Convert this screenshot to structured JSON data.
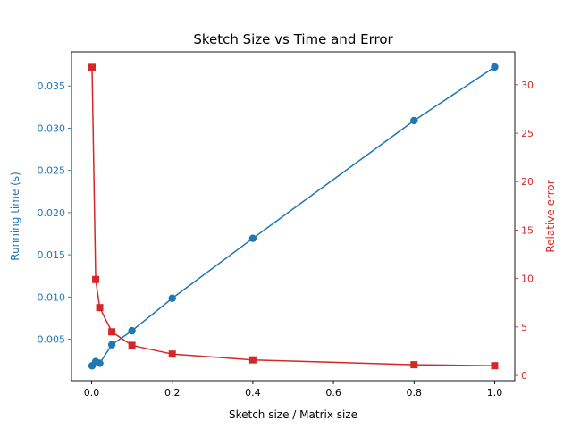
{
  "chart_data": {
    "type": "line",
    "title": "Sketch Size vs Time and Error",
    "xlabel": "Sketch size / Matrix size",
    "xlim": [
      -0.05,
      1.05
    ],
    "xticks": [
      0.0,
      0.2,
      0.4,
      0.6,
      0.8,
      1.0
    ],
    "x": [
      0.001,
      0.01,
      0.02,
      0.05,
      0.1,
      0.2,
      0.4,
      0.8,
      1.0
    ],
    "legend": "none",
    "grid": false,
    "axes": {
      "left": {
        "label": "Running time (s)",
        "color": "#1f77b4",
        "ylim": [
          8e-05,
          0.03905
        ],
        "ticks": [
          0.005,
          0.01,
          0.015,
          0.02,
          0.025,
          0.03,
          0.035
        ],
        "tick_decimals": 3
      },
      "right": {
        "label": "Relative error",
        "color": "#d62728",
        "ylim": [
          -0.55,
          33.4
        ],
        "ticks": [
          0,
          5,
          10,
          15,
          20,
          25,
          30
        ],
        "tick_decimals": 0
      }
    },
    "series": [
      {
        "axis": "left",
        "color": "#1f77b4",
        "marker": "circle",
        "values": [
          0.00185,
          0.00235,
          0.00215,
          0.00435,
          0.006,
          0.00985,
          0.01695,
          0.0309,
          0.03725
        ]
      },
      {
        "axis": "right",
        "color": "#d62728",
        "marker": "square",
        "values": [
          31.8,
          9.9,
          7.0,
          4.5,
          3.1,
          2.2,
          1.6,
          1.1,
          1.0
        ]
      }
    ]
  }
}
